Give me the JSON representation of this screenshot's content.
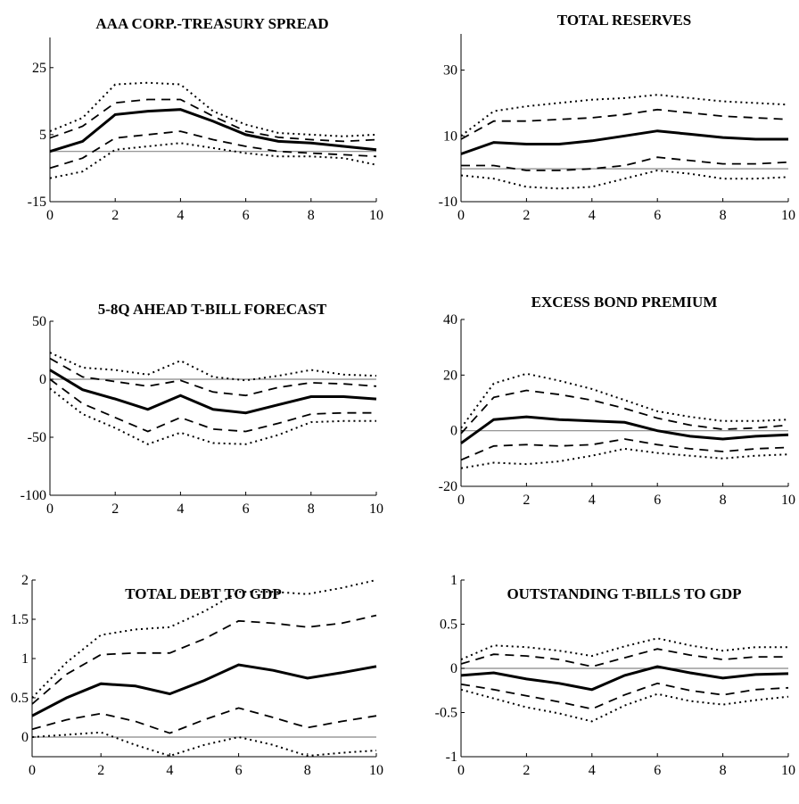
{
  "chart_data": [
    {
      "type": "line",
      "title": "AAA CORP.-TREASURY SPREAD",
      "x": [
        0,
        1,
        2,
        3,
        4,
        5,
        6,
        7,
        8,
        9,
        10
      ],
      "xticks": [
        0,
        2,
        4,
        6,
        8,
        10
      ],
      "xtick_labels": [
        "0",
        "2",
        "4",
        "6",
        "8",
        "10"
      ],
      "yticks": [
        -15,
        5,
        25
      ],
      "ytick_labels": [
        "-15",
        "5",
        "25"
      ],
      "ylim": [
        -15,
        34
      ],
      "xlim": [
        0,
        10
      ],
      "zero_line": 0,
      "series": [
        {
          "style": "outer",
          "values": [
            6,
            10,
            20,
            20.5,
            20,
            12,
            8,
            5.5,
            5,
            4.5,
            5
          ]
        },
        {
          "style": "inner",
          "values": [
            4,
            7.5,
            14.5,
            15.5,
            15.5,
            10.5,
            6,
            4.2,
            3.5,
            3,
            3.5
          ]
        },
        {
          "style": "median",
          "values": [
            0,
            3,
            11,
            12,
            12.5,
            9,
            5,
            3,
            2.5,
            1.5,
            0.5
          ]
        },
        {
          "style": "inner",
          "values": [
            -5,
            -2,
            4,
            5,
            6,
            3.5,
            1.5,
            0,
            -0.5,
            -1,
            -1.5
          ]
        },
        {
          "style": "outer",
          "values": [
            -8,
            -6,
            0.5,
            1.5,
            2.5,
            1,
            -0.5,
            -1.5,
            -1.5,
            -2,
            -4
          ]
        }
      ]
    },
    {
      "type": "line",
      "title": "TOTAL RESERVES",
      "x": [
        0,
        1,
        2,
        3,
        4,
        5,
        6,
        7,
        8,
        9,
        10
      ],
      "xticks": [
        0,
        2,
        4,
        6,
        8,
        10
      ],
      "xtick_labels": [
        "0",
        "2",
        "4",
        "6",
        "8",
        "10"
      ],
      "yticks": [
        -10,
        10,
        30
      ],
      "ytick_labels": [
        "-10",
        "10",
        "30"
      ],
      "ylim": [
        -10,
        41
      ],
      "xlim": [
        0,
        10
      ],
      "zero_line": 0,
      "series": [
        {
          "style": "outer",
          "values": [
            10,
            17.5,
            19,
            20,
            21,
            21.5,
            22.5,
            21.5,
            20.5,
            20,
            19.5
          ]
        },
        {
          "style": "inner",
          "values": [
            9,
            14.5,
            14.5,
            15,
            15.5,
            16.5,
            18,
            17,
            16,
            15.5,
            15
          ]
        },
        {
          "style": "median",
          "values": [
            4.5,
            8,
            7.5,
            7.5,
            8.5,
            10,
            11.5,
            10.5,
            9.5,
            9,
            9
          ]
        },
        {
          "style": "inner",
          "values": [
            1,
            1,
            -0.5,
            -0.5,
            0,
            1,
            3.5,
            2.5,
            1.5,
            1.5,
            2
          ]
        },
        {
          "style": "outer",
          "values": [
            -2,
            -3,
            -5.5,
            -6,
            -5.5,
            -3,
            -0.5,
            -1.5,
            -3,
            -3,
            -2.5
          ]
        }
      ]
    },
    {
      "type": "line",
      "title": "5-8Q AHEAD T-BILL FORECAST",
      "x": [
        0,
        1,
        2,
        3,
        4,
        5,
        6,
        7,
        8,
        9,
        10
      ],
      "xticks": [
        0,
        2,
        4,
        6,
        8,
        10
      ],
      "xtick_labels": [
        "0",
        "2",
        "4",
        "6",
        "8",
        "10"
      ],
      "yticks": [
        -100,
        -50,
        0,
        50
      ],
      "ytick_labels": [
        "-100",
        "-50",
        "0",
        "50"
      ],
      "ylim": [
        -100,
        50
      ],
      "xlim": [
        0,
        10
      ],
      "zero_line": 0,
      "series": [
        {
          "style": "outer",
          "values": [
            23,
            10,
            8,
            4,
            16,
            2,
            -1,
            3,
            8,
            4,
            3
          ]
        },
        {
          "style": "inner",
          "values": [
            18,
            2,
            -2,
            -6,
            -1,
            -11,
            -14,
            -7,
            -3,
            -4,
            -6
          ]
        },
        {
          "style": "median",
          "values": [
            8,
            -9,
            -17,
            -26,
            -14,
            -26,
            -29,
            -22,
            -15,
            -15,
            -17
          ]
        },
        {
          "style": "inner",
          "values": [
            0,
            -21,
            -33,
            -45,
            -33,
            -43,
            -45,
            -38,
            -30,
            -29,
            -29
          ]
        },
        {
          "style": "outer",
          "values": [
            -8,
            -30,
            -42,
            -56,
            -46,
            -55,
            -56,
            -48,
            -37,
            -36,
            -36
          ]
        }
      ]
    },
    {
      "type": "line",
      "title": "EXCESS BOND PREMIUM",
      "x": [
        0,
        1,
        2,
        3,
        4,
        5,
        6,
        7,
        8,
        9,
        10
      ],
      "xticks": [
        0,
        2,
        4,
        6,
        8,
        10
      ],
      "xtick_labels": [
        "0",
        "2",
        "4",
        "6",
        "8",
        "10"
      ],
      "yticks": [
        -20,
        0,
        20,
        40
      ],
      "ytick_labels": [
        "-20",
        "0",
        "20",
        "40"
      ],
      "ylim": [
        -20,
        40
      ],
      "xlim": [
        0,
        10
      ],
      "zero_line": 0,
      "series": [
        {
          "style": "outer",
          "values": [
            1,
            17,
            20.5,
            18,
            15,
            11,
            7,
            5,
            3.5,
            3.5,
            4
          ]
        },
        {
          "style": "inner",
          "values": [
            -1,
            12,
            14.5,
            13,
            11,
            8,
            4.5,
            2,
            0.5,
            1,
            2
          ]
        },
        {
          "style": "median",
          "values": [
            -4.5,
            4,
            5,
            4,
            3.5,
            3,
            0,
            -2,
            -3,
            -2,
            -1.5
          ]
        },
        {
          "style": "inner",
          "values": [
            -10.5,
            -5.5,
            -5,
            -5.5,
            -5,
            -3,
            -5,
            -6.5,
            -7.5,
            -6.5,
            -6
          ]
        },
        {
          "style": "outer",
          "values": [
            -13.5,
            -11.5,
            -12,
            -11,
            -9,
            -6.5,
            -8,
            -9,
            -10,
            -9,
            -8.5
          ]
        }
      ]
    },
    {
      "type": "line",
      "title": "TOTAL DEBT TO GDP",
      "x": [
        0,
        1,
        2,
        3,
        4,
        5,
        6,
        7,
        8,
        9,
        10
      ],
      "xticks": [
        0,
        2,
        4,
        6,
        8,
        10
      ],
      "xtick_labels": [
        "0",
        "2",
        "4",
        "6",
        "8",
        "10"
      ],
      "yticks": [
        0,
        0.5,
        1,
        1.5,
        2
      ],
      "ytick_labels": [
        "0",
        "0.5",
        "1",
        "1.5",
        "2"
      ],
      "ylim": [
        -0.25,
        2
      ],
      "xlim": [
        0,
        10
      ],
      "zero_line": 0,
      "series": [
        {
          "style": "outer",
          "values": [
            0.5,
            0.95,
            1.3,
            1.37,
            1.4,
            1.6,
            1.85,
            1.85,
            1.82,
            1.9,
            2
          ]
        },
        {
          "style": "inner",
          "values": [
            0.42,
            0.8,
            1.05,
            1.07,
            1.07,
            1.25,
            1.48,
            1.45,
            1.4,
            1.45,
            1.55
          ]
        },
        {
          "style": "median",
          "values": [
            0.27,
            0.5,
            0.68,
            0.65,
            0.55,
            0.72,
            0.92,
            0.85,
            0.75,
            0.82,
            0.9
          ]
        },
        {
          "style": "inner",
          "values": [
            0.1,
            0.22,
            0.3,
            0.2,
            0.05,
            0.22,
            0.37,
            0.25,
            0.12,
            0.2,
            0.27
          ]
        },
        {
          "style": "outer",
          "values": [
            0,
            0.03,
            0.06,
            -0.1,
            -0.24,
            -0.1,
            0,
            -0.1,
            -0.24,
            -0.2,
            -0.17
          ]
        }
      ]
    },
    {
      "type": "line",
      "title": "OUTSTANDING T-BILLS TO GDP",
      "x": [
        0,
        1,
        2,
        3,
        4,
        5,
        6,
        7,
        8,
        9,
        10
      ],
      "xticks": [
        0,
        2,
        4,
        6,
        8,
        10
      ],
      "xtick_labels": [
        "0",
        "2",
        "4",
        "6",
        "8",
        "10"
      ],
      "yticks": [
        -1,
        -0.5,
        0,
        0.5,
        1
      ],
      "ytick_labels": [
        "-1",
        "-0.5",
        "0",
        "0.5",
        "1"
      ],
      "ylim": [
        -1,
        1
      ],
      "xlim": [
        0,
        10
      ],
      "zero_line": 0,
      "series": [
        {
          "style": "outer",
          "values": [
            0.1,
            0.26,
            0.24,
            0.2,
            0.14,
            0.25,
            0.34,
            0.26,
            0.2,
            0.24,
            0.24
          ]
        },
        {
          "style": "inner",
          "values": [
            0.05,
            0.16,
            0.14,
            0.1,
            0.02,
            0.12,
            0.22,
            0.15,
            0.1,
            0.13,
            0.13
          ]
        },
        {
          "style": "median",
          "values": [
            -0.08,
            -0.05,
            -0.12,
            -0.17,
            -0.24,
            -0.08,
            0.02,
            -0.05,
            -0.11,
            -0.07,
            -0.06
          ]
        },
        {
          "style": "inner",
          "values": [
            -0.18,
            -0.24,
            -0.31,
            -0.38,
            -0.46,
            -0.3,
            -0.17,
            -0.25,
            -0.3,
            -0.24,
            -0.22
          ]
        },
        {
          "style": "outer",
          "values": [
            -0.24,
            -0.34,
            -0.44,
            -0.51,
            -0.6,
            -0.42,
            -0.29,
            -0.37,
            -0.41,
            -0.36,
            -0.32
          ]
        }
      ]
    }
  ]
}
